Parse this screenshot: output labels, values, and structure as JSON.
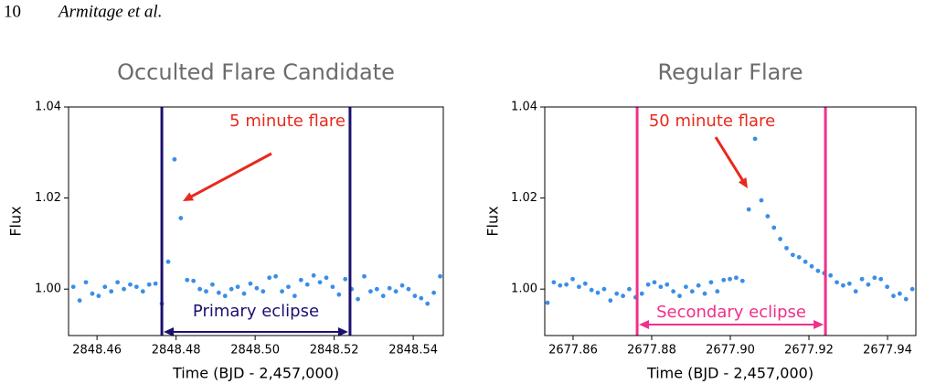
{
  "header": {
    "page": "10",
    "authors": "Armitage et al."
  },
  "chart_data": [
    {
      "type": "scatter",
      "title": "Occulted Flare Candidate",
      "xlabel": "Time (BJD - 2,457,000)",
      "ylabel": "Flux",
      "color": "#3a8ee6",
      "x": [
        2848.454,
        2848.4556,
        2848.4572,
        2848.4588,
        2848.4604,
        2848.462,
        2848.4636,
        2848.4652,
        2848.4668,
        2848.4684,
        2848.47,
        2848.4716,
        2848.4732,
        2848.4748,
        2848.4764,
        2848.478,
        2848.4796,
        2848.4812,
        2848.4828,
        2848.4844,
        2848.486,
        2848.4876,
        2848.4892,
        2848.4908,
        2848.4924,
        2848.494,
        2848.4956,
        2848.4972,
        2848.4988,
        2848.5004,
        2848.502,
        2848.5036,
        2848.5052,
        2848.5068,
        2848.5084,
        2848.51,
        2848.5116,
        2848.5132,
        2848.5148,
        2848.5164,
        2848.518,
        2848.5196,
        2848.5212,
        2848.5228,
        2848.5244,
        2848.526,
        2848.5276,
        2848.5292,
        2848.5308,
        2848.5324,
        2848.534,
        2848.5356,
        2848.5372,
        2848.5388,
        2848.5404,
        2848.542,
        2848.5436,
        2848.5452,
        2848.5468
      ],
      "values": [
        1.0005,
        0.9975,
        1.0015,
        0.999,
        0.9985,
        1.0005,
        0.9995,
        1.0015,
        1.0,
        1.001,
        1.0005,
        0.9995,
        1.001,
        1.0012,
        0.9968,
        1.006,
        1.0285,
        1.0156,
        1.002,
        1.0018,
        1.0,
        0.9995,
        1.001,
        0.9992,
        0.9985,
        1.0,
        1.0005,
        0.999,
        1.0012,
        1.0002,
        0.9995,
        1.0025,
        1.0028,
        0.9995,
        1.0005,
        0.9985,
        1.002,
        1.001,
        1.003,
        1.0015,
        1.0025,
        1.0005,
        0.9988,
        1.0022,
        1.0,
        0.9978,
        1.0028,
        0.9995,
        1.0,
        0.9985,
        1.0002,
        0.9995,
        1.0008,
        1.0,
        0.9985,
        0.998,
        0.9968,
        0.9992,
        1.0028
      ],
      "xlim": [
        2848.4528,
        2848.5476
      ],
      "ylim": [
        0.9898,
        1.04
      ],
      "xticks": [
        2848.46,
        2848.48,
        {
          "value": 2848.5,
          "label": "2848.50"
        },
        2848.52,
        2848.54
      ],
      "yticks": [
        {
          "value": 1,
          "label": "1.00"
        },
        {
          "value": 1.02,
          "label": "1.02"
        },
        {
          "value": 1.04,
          "label": "1.04"
        }
      ],
      "vlines": {
        "values": [
          2848.4764,
          2848.524
        ],
        "color": "#1a1070"
      },
      "annotation": {
        "text": "5 minute flare",
        "color": "#e8291c"
      },
      "span_label": {
        "text": "Primary eclipse",
        "color": "#1a1070"
      }
    },
    {
      "type": "scatter",
      "title": "Regular Flare",
      "xlabel": "Time (BJD - 2,457,000)",
      "ylabel": "Flux",
      "color": "#3a8ee6",
      "x": [
        2677.8535,
        2677.8551,
        2677.8567,
        2677.8583,
        2677.8599,
        2677.8615,
        2677.8631,
        2677.8647,
        2677.8663,
        2677.8679,
        2677.8695,
        2677.8711,
        2677.8727,
        2677.8743,
        2677.8759,
        2677.8775,
        2677.8791,
        2677.8807,
        2677.8823,
        2677.8839,
        2677.8855,
        2677.8871,
        2677.8887,
        2677.8903,
        2677.8919,
        2677.8935,
        2677.8951,
        2677.8967,
        2677.8983,
        2677.8999,
        2677.9015,
        2677.9031,
        2677.9047,
        2677.9063,
        2677.9079,
        2677.9095,
        2677.9111,
        2677.9127,
        2677.9143,
        2677.9159,
        2677.9175,
        2677.9191,
        2677.9207,
        2677.9223,
        2677.9239,
        2677.9255,
        2677.9271,
        2677.9287,
        2677.9303,
        2677.9319,
        2677.9335,
        2677.9351,
        2677.9367,
        2677.9383,
        2677.9399,
        2677.9415,
        2677.9431,
        2677.9447,
        2677.9463
      ],
      "values": [
        0.997,
        1.0015,
        1.0008,
        1.001,
        1.0022,
        1.0005,
        1.0012,
        0.9998,
        0.9992,
        1.0,
        0.9975,
        0.999,
        0.9985,
        1.0,
        0.9982,
        0.999,
        1.001,
        1.0015,
        1.0005,
        1.001,
        0.9995,
        0.9985,
        1.0005,
        0.9995,
        1.0008,
        0.999,
        1.0015,
        0.9995,
        1.002,
        1.0022,
        1.0025,
        1.0018,
        1.0175,
        1.033,
        1.0195,
        1.016,
        1.0135,
        1.011,
        1.009,
        1.0075,
        1.007,
        1.006,
        1.005,
        1.004,
        1.0035,
        1.003,
        1.0015,
        1.0008,
        1.0012,
        0.9995,
        1.0022,
        1.001,
        1.0025,
        1.0022,
        1.0005,
        0.9985,
        0.999,
        0.9978,
        1.0
      ],
      "xlim": [
        2677.8528,
        2677.9472
      ],
      "ylim": [
        0.9898,
        1.04
      ],
      "xticks": [
        2677.86,
        2677.88,
        {
          "value": 2677.9,
          "label": "2677.90"
        },
        2677.92,
        2677.94
      ],
      "yticks": [
        {
          "value": 1,
          "label": "1.00"
        },
        {
          "value": 1.02,
          "label": "1.02"
        },
        {
          "value": 1.04,
          "label": "1.04"
        }
      ],
      "vlines": {
        "values": [
          2677.8763,
          2677.9242
        ],
        "color": "#f0308a"
      },
      "annotation": {
        "text": "50 minute flare",
        "color": "#e8291c"
      },
      "span_label": {
        "text": "Secondary eclipse",
        "color": "#f0308a"
      }
    }
  ]
}
